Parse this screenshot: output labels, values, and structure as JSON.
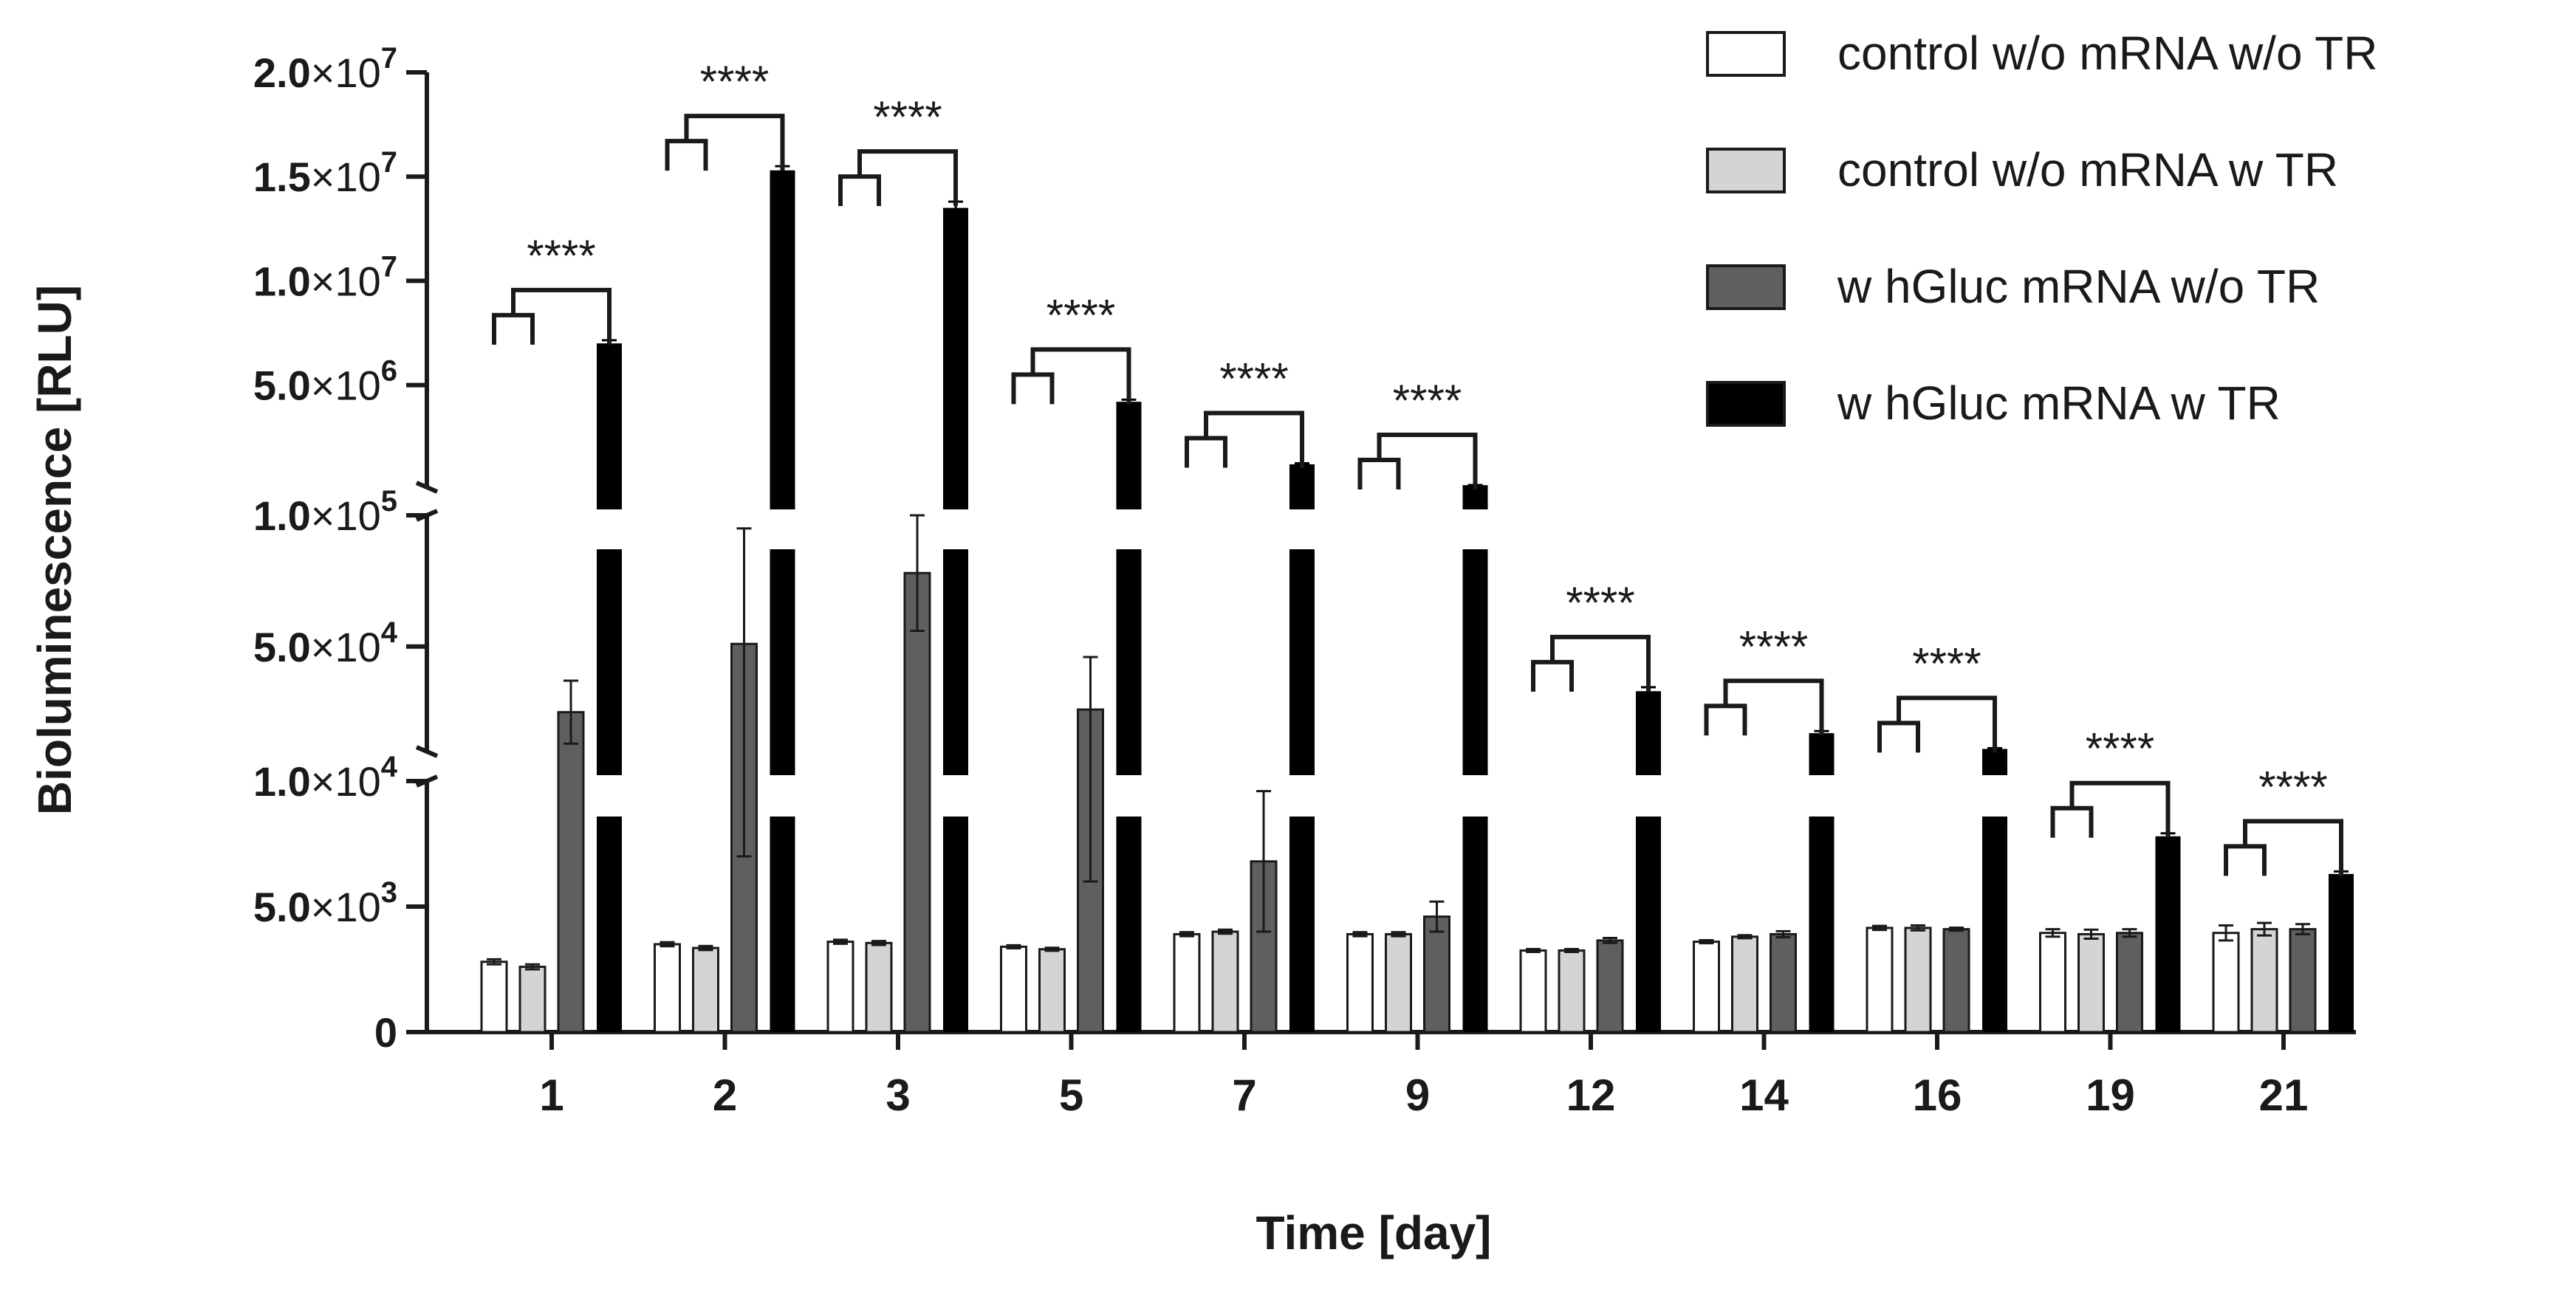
{
  "chart_data": {
    "type": "bar",
    "xlabel": "Time [day]",
    "ylabel": "Bioluminescence [RLU]",
    "categories": [
      "1",
      "2",
      "3",
      "5",
      "7",
      "9",
      "12",
      "14",
      "16",
      "19",
      "21"
    ],
    "y_axis": {
      "broken": true,
      "segments": [
        {
          "range": [
            0,
            10000
          ],
          "tick_values": [
            0,
            5000,
            10000
          ]
        },
        {
          "range": [
            10000,
            100000
          ],
          "tick_values": [
            50000,
            100000
          ]
        },
        {
          "range": [
            100000,
            20000000
          ],
          "tick_values": [
            5000000,
            10000000,
            15000000,
            20000000
          ]
        }
      ],
      "tick_labels": [
        {
          "value": 0,
          "mantissa": "0",
          "exponent": ""
        },
        {
          "value": 5000,
          "mantissa": "5.0",
          "exponent": "3"
        },
        {
          "value": 10000,
          "mantissa": "1.0",
          "exponent": "4"
        },
        {
          "value": 50000,
          "mantissa": "5.0",
          "exponent": "4"
        },
        {
          "value": 100000,
          "mantissa": "1.0",
          "exponent": "5"
        },
        {
          "value": 5000000,
          "mantissa": "5.0",
          "exponent": "6"
        },
        {
          "value": 10000000,
          "mantissa": "1.0",
          "exponent": "7"
        },
        {
          "value": 15000000,
          "mantissa": "1.5",
          "exponent": "7"
        },
        {
          "value": 20000000,
          "mantissa": "2.0",
          "exponent": "7"
        }
      ],
      "times_sign": "×"
    },
    "series": [
      {
        "name": "control w/o mRNA w/o TR",
        "color": "#ffffff",
        "values": [
          2800,
          3500,
          3600,
          3400,
          3900,
          3900,
          3250,
          3600,
          4150,
          3950,
          3950
        ],
        "errors": [
          100,
          80,
          80,
          60,
          80,
          80,
          60,
          60,
          80,
          150,
          300
        ]
      },
      {
        "name": "control w/o mRNA w TR",
        "color": "#d4d4d4",
        "values": [
          2600,
          3350,
          3550,
          3300,
          4000,
          3900,
          3250,
          3800,
          4150,
          3900,
          4100
        ],
        "errors": [
          100,
          80,
          80,
          60,
          80,
          80,
          60,
          60,
          100,
          180,
          250
        ]
      },
      {
        "name": "w hGluc mRNA w/o TR",
        "color": "#5f5f5f",
        "values": [
          25000,
          51000,
          78000,
          26000,
          6800,
          4600,
          3650,
          3900,
          4100,
          3950,
          4100
        ],
        "errors": [
          12000,
          44000,
          22000,
          20000,
          2800,
          600,
          100,
          120,
          60,
          150,
          200
        ]
      },
      {
        "name": "w hGluc mRNA w TR",
        "color": "#000000",
        "values": [
          7000000,
          15300000,
          13500000,
          4200000,
          1200000,
          200000,
          33000,
          17000,
          11000,
          7800,
          6300
        ],
        "errors": [
          150000,
          200000,
          300000,
          100000,
          50000,
          5000,
          1500,
          800,
          300,
          120,
          100
        ]
      }
    ],
    "significance": [
      {
        "category": "1",
        "label": "****"
      },
      {
        "category": "2",
        "label": "****"
      },
      {
        "category": "3",
        "label": "****"
      },
      {
        "category": "5",
        "label": "****"
      },
      {
        "category": "7",
        "label": "****"
      },
      {
        "category": "9",
        "label": "****"
      },
      {
        "category": "12",
        "label": "****"
      },
      {
        "category": "14",
        "label": "****"
      },
      {
        "category": "16",
        "label": "****"
      },
      {
        "category": "19",
        "label": "****"
      },
      {
        "category": "21",
        "label": "****"
      }
    ],
    "legend_position": "top-right"
  }
}
